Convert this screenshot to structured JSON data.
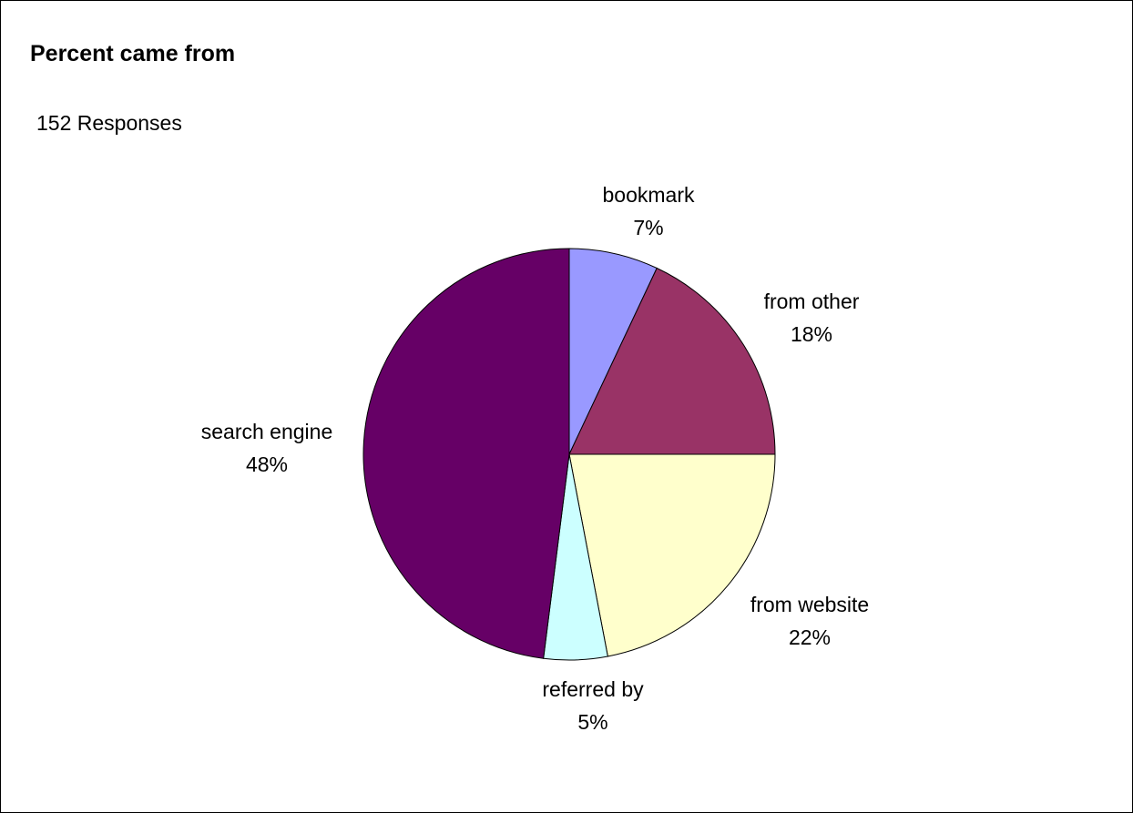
{
  "chart_data": {
    "type": "pie",
    "title": "Percent came from",
    "subtitle": "152 Responses",
    "slices": [
      {
        "label": "bookmark",
        "value": 7,
        "value_label": "7%",
        "color": "#9999ff"
      },
      {
        "label": "from other",
        "value": 18,
        "value_label": "18%",
        "color": "#993366"
      },
      {
        "label": "from website",
        "value": 22,
        "value_label": "22%",
        "color": "#ffffcc"
      },
      {
        "label": "referred by",
        "value": 5,
        "value_label": "5%",
        "color": "#ccffff"
      },
      {
        "label": "search engine",
        "value": 48,
        "value_label": "48%",
        "color": "#660066"
      }
    ],
    "start_angle": "12 o'clock",
    "direction": "clockwise",
    "legend": "none"
  }
}
